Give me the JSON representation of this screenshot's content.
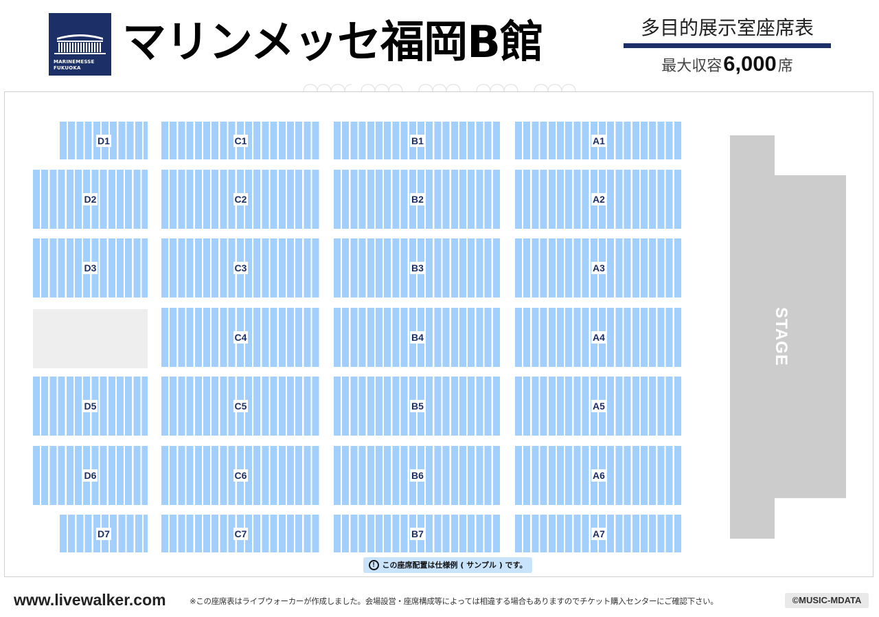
{
  "header": {
    "logo_text_1": "MARINEMESSE",
    "logo_text_2": "FUKUOKA",
    "title": "マリンメッセ福岡B館",
    "subtitle": "多目的展示室座席表",
    "capacity_prefix": "最大収容",
    "capacity_value": "6,000",
    "capacity_suffix": "席"
  },
  "stage_label": "STAGE",
  "blocks": [
    {
      "id": "D1",
      "label": "D1"
    },
    {
      "id": "D2",
      "label": "D2"
    },
    {
      "id": "D3",
      "label": "D3"
    },
    {
      "id": "D5",
      "label": "D5"
    },
    {
      "id": "D6",
      "label": "D6"
    },
    {
      "id": "D7",
      "label": "D7"
    },
    {
      "id": "C1",
      "label": "C1"
    },
    {
      "id": "C2",
      "label": "C2"
    },
    {
      "id": "C3",
      "label": "C3"
    },
    {
      "id": "C4",
      "label": "C4"
    },
    {
      "id": "C5",
      "label": "C5"
    },
    {
      "id": "C6",
      "label": "C6"
    },
    {
      "id": "C7",
      "label": "C7"
    },
    {
      "id": "B1",
      "label": "B1"
    },
    {
      "id": "B2",
      "label": "B2"
    },
    {
      "id": "B3",
      "label": "B3"
    },
    {
      "id": "B4",
      "label": "B4"
    },
    {
      "id": "B5",
      "label": "B5"
    },
    {
      "id": "B6",
      "label": "B6"
    },
    {
      "id": "B7",
      "label": "B7"
    },
    {
      "id": "A1",
      "label": "A1"
    },
    {
      "id": "A2",
      "label": "A2"
    },
    {
      "id": "A3",
      "label": "A3"
    },
    {
      "id": "A4",
      "label": "A4"
    },
    {
      "id": "A5",
      "label": "A5"
    },
    {
      "id": "A6",
      "label": "A6"
    },
    {
      "id": "A7",
      "label": "A7"
    }
  ],
  "note": "この座席配置は仕様例 ( サンプル ) です。",
  "note_icon": "!",
  "footer": {
    "url": "www.livewalker.com",
    "disclaimer": "※この座席表はライブウォーカーが作成しました。会場設営・座席構成等によっては相違する場合もありますのでチケット購入センターにご確認下さい。",
    "copyright": "©MUSIC-MDATA"
  },
  "colors": {
    "navy": "#1c2f66",
    "seat_blue": "#a3cffd",
    "stage_gray": "#cccccc",
    "empty_gray": "#eeeeee",
    "note_bg": "#c9e3fb"
  },
  "icons": {
    "logo": "marinemesse-building-icon",
    "note": "exclamation-circle-icon"
  }
}
